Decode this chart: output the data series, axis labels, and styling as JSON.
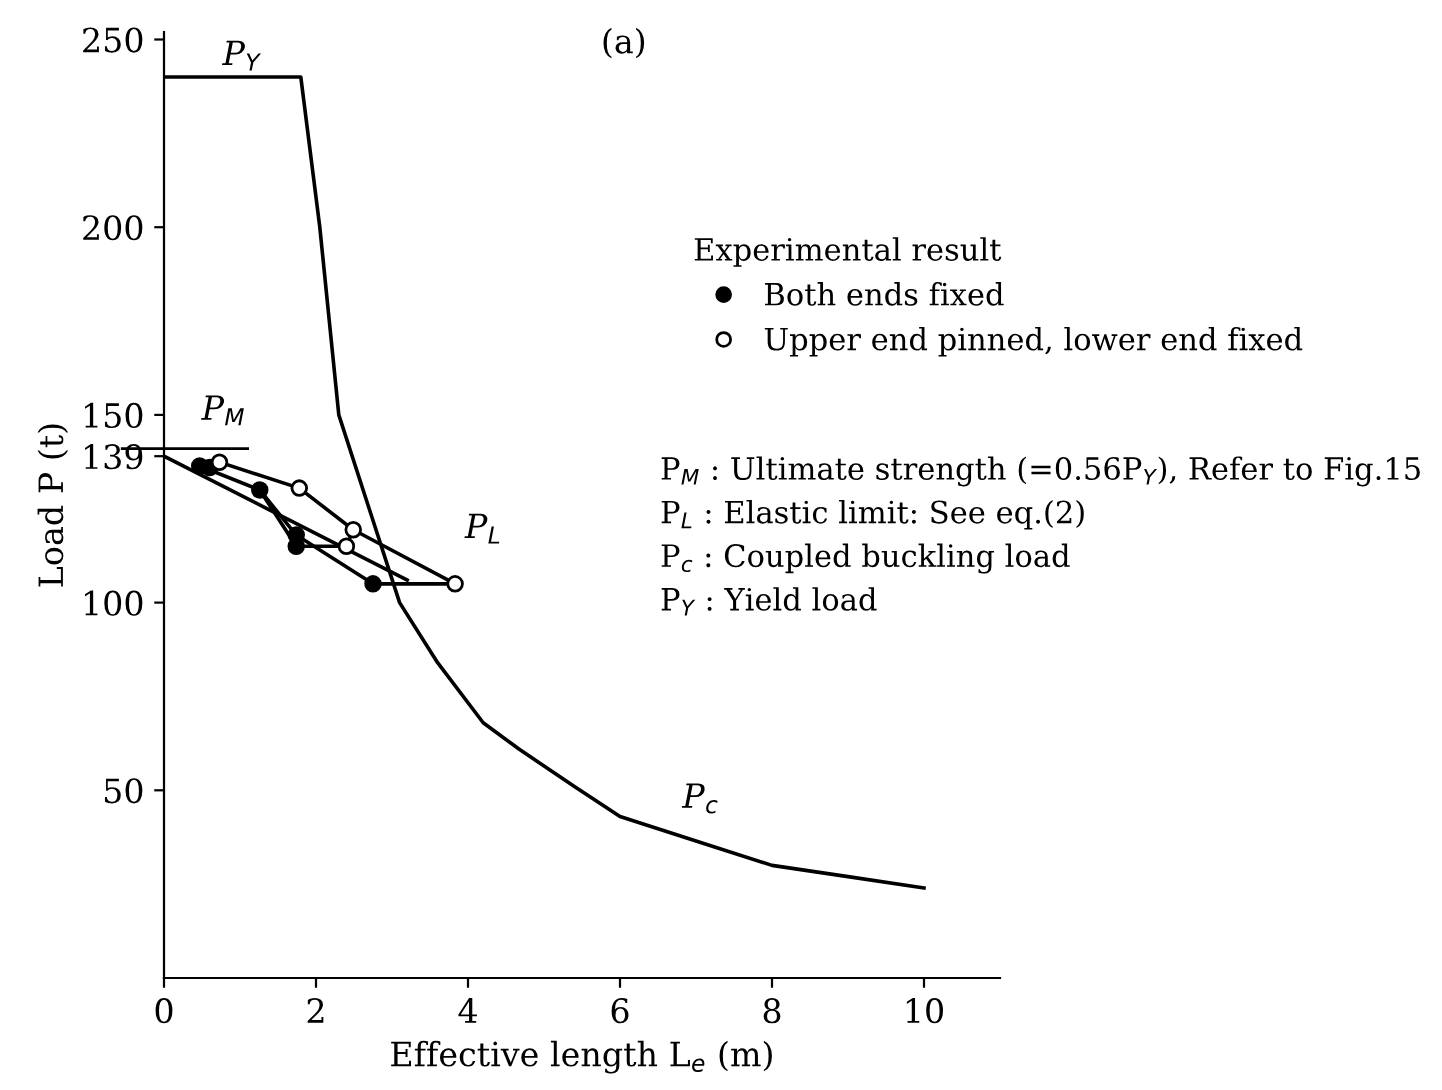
{
  "chart_data": {
    "type": "line",
    "title": "(a)",
    "xlabel": "Effective length L$_{e}$ (m)",
    "ylabel": "Load P (t)",
    "legend_title": "Experimental result",
    "legend": "right",
    "xlim": [
      0,
      11
    ],
    "ylim": [
      0,
      252
    ],
    "xticks": [
      0,
      2,
      4,
      6,
      8,
      10
    ],
    "yticks": [
      50,
      100,
      139,
      150,
      200,
      250
    ],
    "grid": false,
    "series": [
      {
        "color": "#000000",
        "x": [
          0,
          1.8,
          2.05,
          2.3,
          2.7,
          3.1,
          3.6,
          4.2,
          4.67,
          5.4,
          6,
          7,
          8,
          9,
          10
        ],
        "values": [
          240,
          240,
          200,
          150,
          125,
          100,
          84,
          68,
          61,
          51,
          43,
          36.5,
          30,
          27,
          24
        ],
        "marker": "none"
      },
      {
        "color": "#000000",
        "x": [
          0,
          3.2
        ],
        "values": [
          139,
          106
        ],
        "marker": "none"
      },
      {
        "name": "Both ends fixed",
        "type": "scatter",
        "color": "#000000",
        "marker": "circle",
        "x": [
          0.47,
          0.6,
          1.26,
          1.74,
          1.74,
          2.75
        ],
        "values": [
          136.4,
          136,
          130,
          118,
          115,
          105
        ]
      },
      {
        "name": "Upper end pinned, lower end fixed",
        "type": "scatter",
        "color": "#ffffff",
        "marker": "circle",
        "x": [
          0.73,
          1.78,
          2.49,
          2.4,
          3.83
        ],
        "values": [
          137.4,
          130.5,
          119.4,
          115,
          105
        ]
      },
      {
        "color": "#000000",
        "x": [
          0.47,
          1.26,
          1.74,
          2.75,
          3.83
        ],
        "values": [
          136.4,
          130,
          118,
          105,
          105
        ],
        "marker": "none"
      },
      {
        "color": "#000000",
        "x": [
          0.73,
          1.78,
          2.49,
          3.83
        ],
        "values": [
          137.4,
          130.5,
          119.4,
          105
        ],
        "marker": "none"
      },
      {
        "color": "#000000",
        "x": [
          1.26,
          1.74,
          2.4,
          2.49
        ],
        "values": [
          130,
          115,
          115,
          119.4
        ],
        "marker": "none"
      }
    ],
    "ref_lines": [
      {
        "axis": "y",
        "value": 141,
        "color": "#000000",
        "line_style": "solid"
      }
    ],
    "annotations": [
      "P$_{Y}$",
      "P$_{M}$",
      "P$_{L}$",
      "P$_{c}$",
      "P$_{M}$ : Ultimate strength (=0.56P$_{Y}$), Refer to Fig.15",
      "P$_{L}$ : Elastic limit: See eq.(2)",
      "P$_{c}$ : Coupled buckling load",
      "P$_{Y}$ : Yield load"
    ]
  }
}
